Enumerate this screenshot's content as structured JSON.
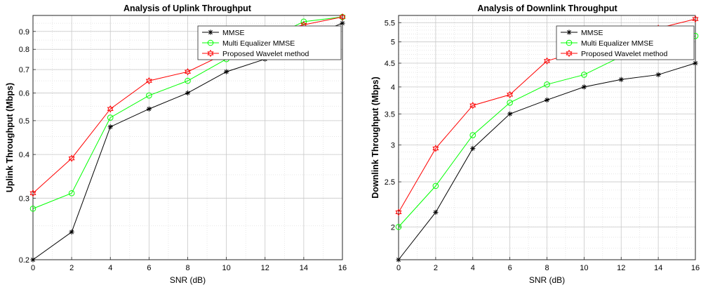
{
  "chart_data": [
    {
      "type": "line",
      "title": "Analysis of Uplink Throughput",
      "xlabel": "SNR (dB)",
      "ylabel": "Uplink Throughput (Mbps)",
      "x": [
        0,
        2,
        4,
        6,
        8,
        10,
        12,
        14,
        16
      ],
      "xlim": [
        0,
        16
      ],
      "ylim": [
        0.2,
        1.0
      ],
      "yscale": "log",
      "xticks": [
        "0",
        "2",
        "4",
        "6",
        "8",
        "10",
        "12",
        "14",
        "16"
      ],
      "yticks": [
        0.2,
        0.3,
        0.4,
        0.5,
        0.6,
        0.7,
        0.8,
        0.9
      ],
      "yticklabels": [
        "0.2",
        "0.3",
        "0.4",
        "0.5",
        "0.6",
        "0.7",
        "0.8",
        "0.9"
      ],
      "grid": true,
      "legend": "top-right",
      "series": [
        {
          "name": "MMSE",
          "color": "#000000",
          "marker": "asterisk",
          "values": [
            0.2,
            0.24,
            0.48,
            0.54,
            0.6,
            0.69,
            0.75,
            0.86,
            0.95
          ]
        },
        {
          "name": "Multi Equalizer MMSE",
          "color": "#00ff00",
          "marker": "circle",
          "values": [
            0.28,
            0.31,
            0.51,
            0.59,
            0.65,
            0.75,
            0.85,
            0.96,
            0.99
          ]
        },
        {
          "name": "Proposed Wavelet method",
          "color": "#ff0000",
          "marker": "hexagram",
          "values": [
            0.31,
            0.39,
            0.54,
            0.65,
            0.69,
            0.78,
            0.88,
            0.94,
            0.99
          ]
        }
      ]
    },
    {
      "type": "line",
      "title": "Analysis of Downlink Throughput",
      "xlabel": "SNR (dB)",
      "ylabel": "Downlink Throughput (Mbps)",
      "x": [
        0,
        2,
        4,
        6,
        8,
        10,
        12,
        14,
        16
      ],
      "xlim": [
        0,
        16
      ],
      "ylim": [
        1.7,
        5.7
      ],
      "yscale": "log",
      "xticks": [
        "0",
        "2",
        "4",
        "6",
        "8",
        "10",
        "12",
        "14",
        "16"
      ],
      "yticks": [
        2,
        2.5,
        3,
        3.5,
        4,
        4.5,
        5,
        5.5
      ],
      "yticklabels": [
        "2",
        "2.5",
        "3",
        "3.5",
        "4",
        "4.5",
        "5",
        "5.5"
      ],
      "grid": true,
      "legend": "top-right",
      "series": [
        {
          "name": "MMSE",
          "color": "#000000",
          "marker": "asterisk",
          "values": [
            1.7,
            2.15,
            2.95,
            3.5,
            3.75,
            4.0,
            4.15,
            4.25,
            4.5
          ]
        },
        {
          "name": "Multi Equalizer MMSE",
          "color": "#00ff00",
          "marker": "circle",
          "values": [
            2.0,
            2.45,
            3.15,
            3.7,
            4.05,
            4.25,
            4.65,
            4.95,
            5.15
          ]
        },
        {
          "name": "Proposed Wavelet method",
          "color": "#ff0000",
          "marker": "hexagram",
          "values": [
            2.15,
            2.95,
            3.65,
            3.85,
            4.55,
            4.8,
            5.05,
            5.35,
            5.6
          ]
        }
      ]
    }
  ]
}
